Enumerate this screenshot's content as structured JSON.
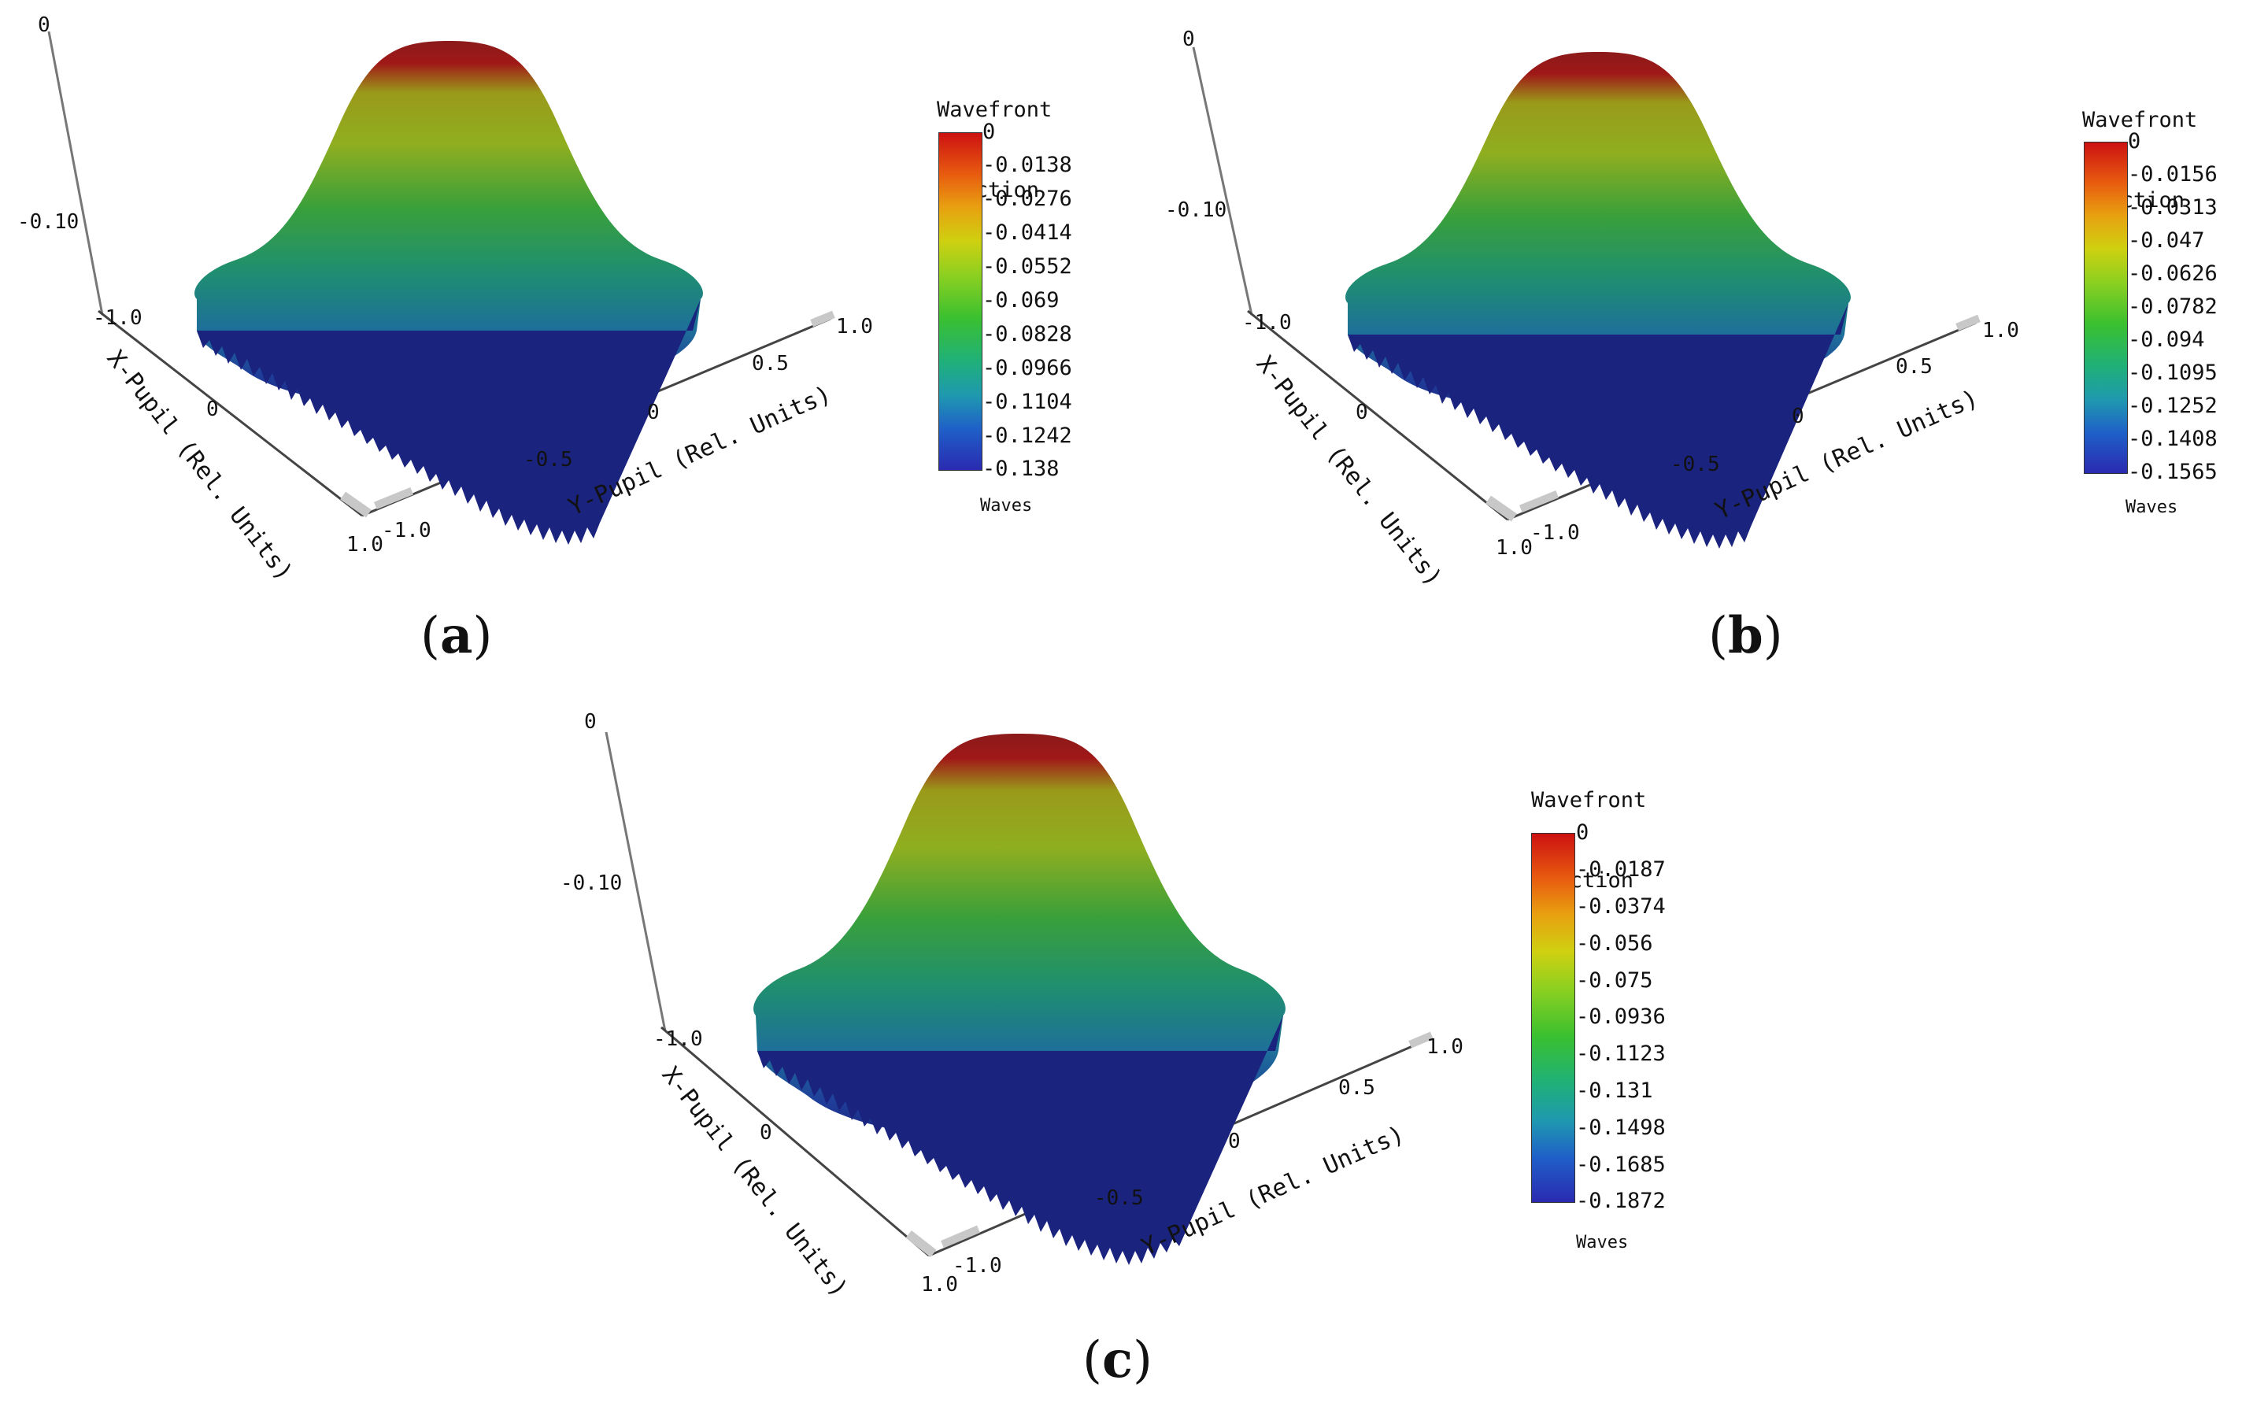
{
  "chart_data": [
    {
      "type": "surface3d",
      "panel_label": "a",
      "z_axis_ticks": [
        "0",
        "-0.10"
      ],
      "x_axis": {
        "label": "X-Pupil (Rel. Units)",
        "ticks": [
          "-1.0",
          "0",
          "1.0"
        ]
      },
      "y_axis": {
        "label": "Y-Pupil (Rel. Units)",
        "ticks": [
          "-1.0",
          "-0.5",
          "0",
          "0.5",
          "1.0"
        ]
      },
      "colorbar": {
        "title": [
          "Wavefront",
          "Function"
        ],
        "unit": "Waves",
        "range": [
          -0.138,
          0
        ],
        "ticks": [
          "0",
          "-0.0138",
          "-0.0276",
          "-0.0414",
          "-0.0552",
          "-0.069",
          "-0.0828",
          "-0.0966",
          "-0.1104",
          "-0.1242",
          "-0.138"
        ]
      }
    },
    {
      "type": "surface3d",
      "panel_label": "b",
      "z_axis_ticks": [
        "0",
        "-0.10"
      ],
      "x_axis": {
        "label": "X-Pupil (Rel. Units)",
        "ticks": [
          "-1.0",
          "0",
          "1.0"
        ]
      },
      "y_axis": {
        "label": "Y-Pupil (Rel. Units)",
        "ticks": [
          "-1.0",
          "-0.5",
          "0",
          "0.5",
          "1.0"
        ]
      },
      "colorbar": {
        "title": [
          "Wavefront",
          "Function"
        ],
        "unit": "Waves",
        "range": [
          -0.1565,
          0
        ],
        "ticks": [
          "0",
          "-0.0156",
          "-0.0313",
          "-0.047",
          "-0.0626",
          "-0.0782",
          "-0.094",
          "-0.1095",
          "-0.1252",
          "-0.1408",
          "-0.1565"
        ]
      }
    },
    {
      "type": "surface3d",
      "panel_label": "c",
      "z_axis_ticks": [
        "0",
        "-0.10"
      ],
      "x_axis": {
        "label": "X-Pupil (Rel. Units)",
        "ticks": [
          "-1.0",
          "0",
          "1.0"
        ]
      },
      "y_axis": {
        "label": "Y-Pupil (Rel. Units)",
        "ticks": [
          "-1.0",
          "-0.5",
          "0",
          "0.5",
          "1.0"
        ]
      },
      "colorbar": {
        "title": [
          "Wavefront",
          "Function"
        ],
        "unit": "Waves",
        "range": [
          -0.1872,
          0
        ],
        "ticks": [
          "0",
          "-0.0187",
          "-0.0374",
          "-0.056",
          "-0.075",
          "-0.0936",
          "-0.1123",
          "-0.131",
          "-0.1498",
          "-0.1685",
          "-0.1872"
        ]
      }
    }
  ],
  "colors": {
    "peak": "#8b1a1a",
    "red": "#cc1111",
    "yellow": "#c8c800",
    "green": "#2fa82f",
    "teal": "#1e8a8a",
    "blue": "#1f3f9a",
    "navy": "#1a237e"
  }
}
